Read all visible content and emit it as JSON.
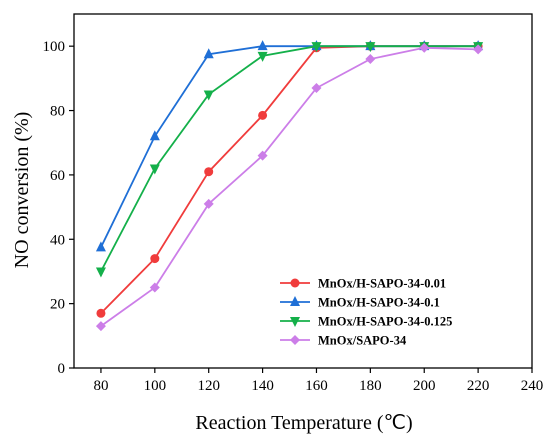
{
  "chart_data": {
    "type": "line",
    "xlabel": "Reaction Temperature (℃)",
    "ylabel": "NO conversion (%)",
    "xlim": [
      70,
      240
    ],
    "ylim": [
      0,
      110
    ],
    "xticks": [
      80,
      100,
      120,
      140,
      160,
      180,
      200,
      220,
      240
    ],
    "yticks": [
      0,
      20,
      40,
      60,
      80,
      100
    ],
    "x_tick_labels": [
      "80",
      "100",
      "120",
      "140",
      "160",
      "180",
      "200",
      "220",
      "240"
    ],
    "y_tick_labels": [
      "0",
      "20",
      "40",
      "60",
      "80",
      "100"
    ],
    "legend_position": "bottom-right",
    "grid": false,
    "x": [
      80,
      100,
      120,
      140,
      160,
      180,
      200,
      220
    ],
    "series": [
      {
        "name": "MnOx/H-SAPO-34-0.01",
        "color": "#f03c3c",
        "marker": "circle",
        "values": [
          17,
          34,
          61,
          78.5,
          99.5,
          100,
          100,
          100
        ]
      },
      {
        "name": "MnOx/H-SAPO-34-0.1",
        "color": "#1f6fd6",
        "marker": "triangle-up",
        "values": [
          37.5,
          72,
          97.5,
          100,
          100,
          100,
          100,
          100
        ]
      },
      {
        "name": "MnOx/H-SAPO-34-0.125",
        "color": "#14b04a",
        "marker": "triangle-down",
        "values": [
          30,
          62,
          85,
          97,
          100,
          100,
          100,
          100
        ]
      },
      {
        "name": "MnOx/SAPO-34",
        "color": "#cc7ee8",
        "marker": "diamond",
        "values": [
          13,
          25,
          51,
          66,
          87,
          96,
          99.5,
          99
        ]
      }
    ]
  }
}
